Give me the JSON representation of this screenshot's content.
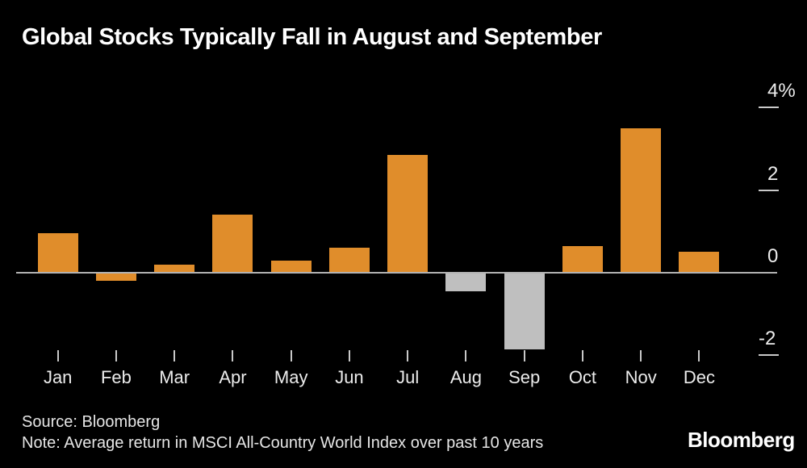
{
  "title": "Global Stocks Typically Fall in August and September",
  "footer": {
    "source": "Source: Bloomberg",
    "note": "Note: Average return in MSCI All-Country World Index over past 10 years",
    "brand": "Bloomberg"
  },
  "colors": {
    "background": "#000000",
    "title_text": "#ffffff",
    "axis_text": "#ececec",
    "footer_text": "#e6e6e6",
    "orange_bar": "#e08d2b",
    "gray_bar": "#bfbfbf",
    "zero_line": "#b3b3b3",
    "tick": "#c9c9c9"
  },
  "chart_data": {
    "type": "bar",
    "title": "Global Stocks Typically Fall in August and September",
    "categories": [
      "Jan",
      "Feb",
      "Mar",
      "Apr",
      "May",
      "Jun",
      "Jul",
      "Aug",
      "Sep",
      "Oct",
      "Nov",
      "Dec"
    ],
    "values": [
      0.95,
      -0.2,
      0.2,
      1.4,
      0.3,
      0.6,
      2.85,
      -0.45,
      -1.85,
      0.65,
      3.5,
      0.5
    ],
    "unit": "%",
    "bar_color_keys": [
      "orange_bar",
      "orange_bar",
      "orange_bar",
      "orange_bar",
      "orange_bar",
      "orange_bar",
      "orange_bar",
      "gray_bar",
      "gray_bar",
      "orange_bar",
      "orange_bar",
      "orange_bar"
    ],
    "yticks": [
      {
        "value": 4,
        "label": "4%"
      },
      {
        "value": 2,
        "label": "2"
      },
      {
        "value": 0,
        "label": "0"
      },
      {
        "value": -2,
        "label": "-2"
      }
    ],
    "ylim": [
      -2.5,
      4.5
    ],
    "xlabel": "",
    "ylabel": "",
    "grid": false,
    "legend": false,
    "axis_side": "right"
  }
}
